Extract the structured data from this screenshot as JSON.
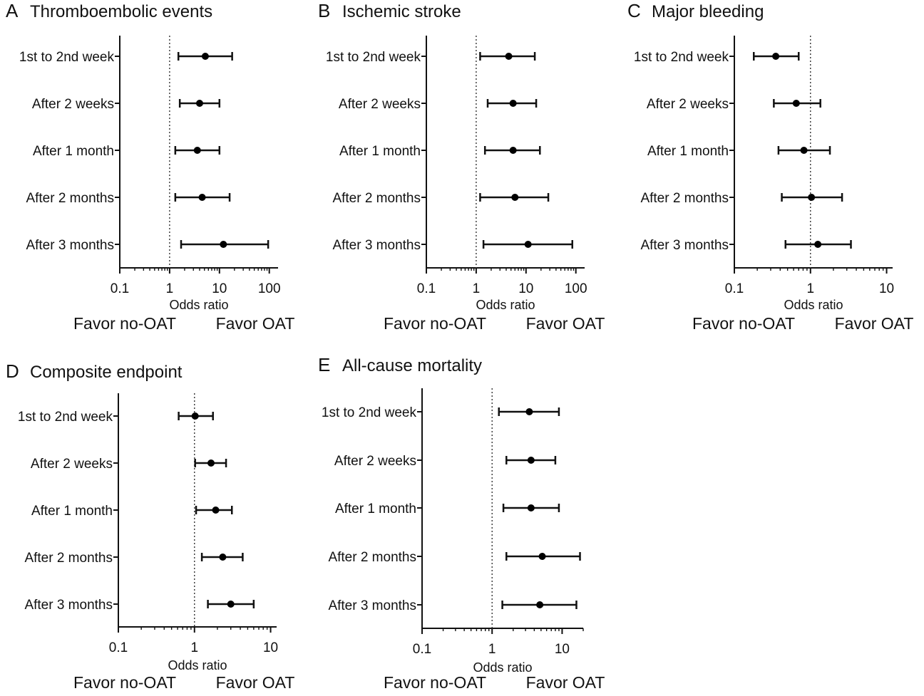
{
  "chart_data": [
    {
      "type": "forest",
      "panel_letter": "A",
      "title": "Thromboembolic events",
      "xlabel": "Odds ratio",
      "xscale": "log",
      "xlim": [
        0.1,
        150
      ],
      "xticks": [
        0.1,
        1,
        10,
        100
      ],
      "xtick_labels": [
        "0.1",
        "1",
        "10",
        "100"
      ],
      "reference_line": 1,
      "favor_left": "Favor no-OAT",
      "favor_right": "Favor OAT",
      "categories": [
        "1st to 2nd week",
        "After 2 weeks",
        "After 1 month",
        "After 2 months",
        "After 3 months"
      ],
      "values": [
        5.2,
        4.0,
        3.6,
        4.5,
        12.0
      ],
      "lower": [
        1.5,
        1.6,
        1.3,
        1.3,
        1.7
      ],
      "upper": [
        18.0,
        10.0,
        10.0,
        16.0,
        95.0
      ]
    },
    {
      "type": "forest",
      "panel_letter": "B",
      "title": "Ischemic stroke",
      "xlabel": "Odds ratio",
      "xscale": "log",
      "xlim": [
        0.1,
        150
      ],
      "xticks": [
        0.1,
        1,
        10,
        100
      ],
      "xtick_labels": [
        "0.1",
        "1",
        "10",
        "100"
      ],
      "reference_line": 1,
      "favor_left": "Favor no-OAT",
      "favor_right": "Favor OAT",
      "categories": [
        "1st to 2nd week",
        "After 2 weeks",
        "After 1 month",
        "After 2 months",
        "After 3 months"
      ],
      "values": [
        4.5,
        5.5,
        5.5,
        6.0,
        11.0
      ],
      "lower": [
        1.2,
        1.7,
        1.5,
        1.2,
        1.4
      ],
      "upper": [
        15.0,
        16.0,
        19.0,
        28.0,
        85.0
      ]
    },
    {
      "type": "forest",
      "panel_letter": "C",
      "title": "Major bleeding",
      "xlabel": "Odds ratio",
      "xscale": "log",
      "xlim": [
        0.1,
        12
      ],
      "xticks": [
        0.1,
        1,
        10
      ],
      "xtick_labels": [
        "0.1",
        "1",
        "10"
      ],
      "reference_line": 1,
      "favor_left": "Favor no-OAT",
      "favor_right": "Favor OAT",
      "categories": [
        "1st to 2nd week",
        "After 2 weeks",
        "After 1 month",
        "After 2 months",
        "After 3 months"
      ],
      "values": [
        0.35,
        0.65,
        0.82,
        1.03,
        1.25
      ],
      "lower": [
        0.18,
        0.33,
        0.38,
        0.42,
        0.47
      ],
      "upper": [
        0.7,
        1.35,
        1.8,
        2.6,
        3.4
      ]
    },
    {
      "type": "forest",
      "panel_letter": "D",
      "title": "Composite endpoint",
      "xlabel": "Odds ratio",
      "xscale": "log",
      "xlim": [
        0.1,
        12
      ],
      "xticks": [
        0.1,
        1,
        10
      ],
      "xtick_labels": [
        "0.1",
        "1",
        "10"
      ],
      "reference_line": 1,
      "favor_left": "Favor no-OAT",
      "favor_right": "Favor OAT",
      "categories": [
        "1st to 2nd week",
        "After 2 weeks",
        "After 1 month",
        "After 2 months",
        "After 3 months"
      ],
      "values": [
        1.02,
        1.65,
        1.9,
        2.35,
        3.0
      ],
      "lower": [
        0.62,
        1.02,
        1.05,
        1.25,
        1.5
      ],
      "upper": [
        1.75,
        2.6,
        3.1,
        4.3,
        6.0
      ]
    },
    {
      "type": "forest",
      "panel_letter": "E",
      "title": "All-cause mortality",
      "xlabel": "Odds ratio",
      "xscale": "log",
      "xlim": [
        0.1,
        20
      ],
      "xticks": [
        0.1,
        1,
        10
      ],
      "xtick_labels": [
        "0.1",
        "1",
        "10"
      ],
      "reference_line": 1,
      "favor_left": "Favor no-OAT",
      "favor_right": "Favor OAT",
      "categories": [
        "1st to 2nd week",
        "After 2 weeks",
        "After 1 month",
        "After 2 months",
        "After 3 months"
      ],
      "values": [
        3.4,
        3.6,
        3.6,
        5.2,
        4.8
      ],
      "lower": [
        1.25,
        1.6,
        1.45,
        1.6,
        1.4
      ],
      "upper": [
        9.0,
        8.0,
        9.0,
        18.0,
        16.0
      ]
    }
  ]
}
